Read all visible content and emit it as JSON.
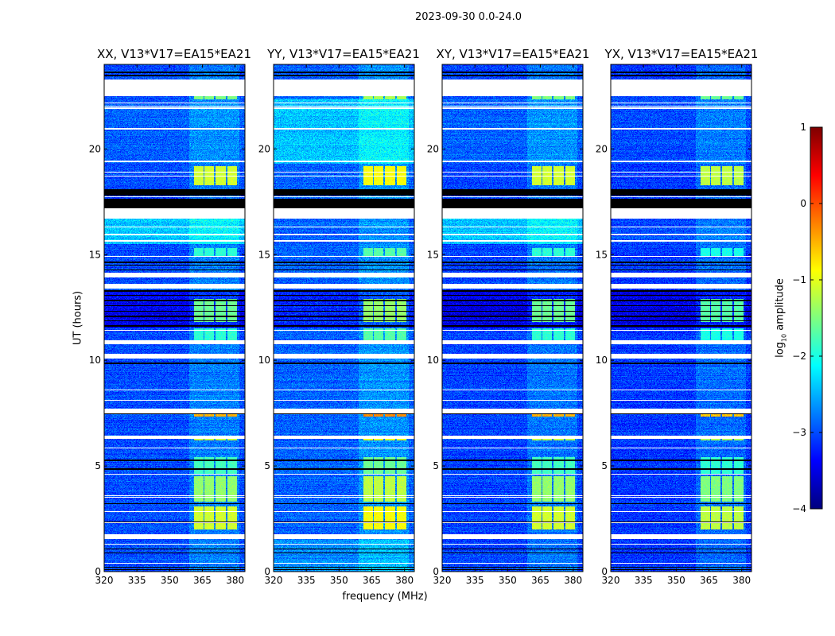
{
  "chart_data": {
    "type": "heatmap",
    "title": "2023-09-30 0.0-24.0",
    "xlabel": "frequency (MHz)",
    "ylabel": "UT (hours)",
    "xlim": [
      320,
      384.5
    ],
    "ylim": [
      0,
      24
    ],
    "xticks": [
      320,
      335,
      350,
      365,
      380
    ],
    "yticks": [
      0,
      5,
      10,
      15,
      20
    ],
    "colorbar": {
      "label_prefix": "log",
      "label_sub": "10",
      "label_suffix": " amplitude",
      "range": [
        -4,
        1
      ],
      "ticks": [
        -4,
        -3,
        -2,
        -1,
        0,
        1
      ],
      "colormap": "jet"
    },
    "panels": [
      {
        "title": "XX, V13*V17=EA15*EA21",
        "base_level": -3.0,
        "rfi_gain": 0.0,
        "regions": [
          {
            "t": [
              15.5,
              16.7
            ],
            "level": -2.4
          },
          {
            "t": [
              11.5,
              13.3
            ],
            "level": -3.4
          },
          {
            "t": [
              19.3,
              22.4
            ],
            "level": -2.9
          }
        ]
      },
      {
        "title": "YY, V13*V17=EA15*EA21",
        "base_level": -2.9,
        "rfi_gain": 0.2,
        "regions": [
          {
            "t": [
              15.5,
              16.7
            ],
            "level": -2.9
          },
          {
            "t": [
              11.5,
              13.3
            ],
            "level": -3.2
          },
          {
            "t": [
              19.3,
              22.4
            ],
            "level": -2.4
          },
          {
            "t": [
              0.0,
              1.5
            ],
            "level": -2.7
          }
        ]
      },
      {
        "title": "XY, V13*V17=EA15*EA21",
        "base_level": -3.05,
        "rfi_gain": 0.0,
        "regions": [
          {
            "t": [
              15.5,
              16.7
            ],
            "level": -2.4
          },
          {
            "t": [
              11.5,
              13.3
            ],
            "level": -3.5
          },
          {
            "t": [
              19.3,
              22.4
            ],
            "level": -2.9
          }
        ]
      },
      {
        "title": "YX, V13*V17=EA15*EA21",
        "base_level": -3.1,
        "rfi_gain": -0.1,
        "regions": [
          {
            "t": [
              15.5,
              16.7
            ],
            "level": -3.0
          },
          {
            "t": [
              11.5,
              13.3
            ],
            "level": -3.5
          },
          {
            "t": [
              19.3,
              22.4
            ],
            "level": -3.0
          }
        ]
      }
    ],
    "flagged_white": [
      [
        22.5,
        23.3
      ],
      [
        22.15,
        22.2
      ],
      [
        22.0,
        22.05
      ],
      [
        21.9,
        21.95
      ],
      [
        20.93,
        20.98
      ],
      [
        19.38,
        19.43
      ],
      [
        18.88,
        18.93
      ],
      [
        18.68,
        18.73
      ],
      [
        17.7,
        17.75
      ],
      [
        16.7,
        17.2
      ],
      [
        16.28,
        16.32
      ],
      [
        15.93,
        15.97
      ],
      [
        15.63,
        15.67
      ],
      [
        14.88,
        14.92
      ],
      [
        13.9,
        14.15
      ],
      [
        13.4,
        13.6
      ],
      [
        11.4,
        11.45
      ],
      [
        10.75,
        10.95
      ],
      [
        10.1,
        10.3
      ],
      [
        8.58,
        8.62
      ],
      [
        8.08,
        8.12
      ],
      [
        7.5,
        7.7
      ],
      [
        6.3,
        6.45
      ],
      [
        5.83,
        5.87
      ],
      [
        4.58,
        4.62
      ],
      [
        3.58,
        3.62
      ],
      [
        3.48,
        3.52
      ],
      [
        2.83,
        2.87
      ],
      [
        2.3,
        2.33
      ],
      [
        1.55,
        1.75
      ],
      [
        1.28,
        1.32
      ],
      [
        0.38,
        0.42
      ]
    ],
    "flagged_black": [
      [
        23.6,
        23.68
      ],
      [
        23.45,
        23.5
      ],
      [
        17.8,
        18.1
      ],
      [
        17.2,
        17.65
      ],
      [
        14.6,
        14.66
      ],
      [
        14.48,
        14.52
      ],
      [
        14.25,
        14.3
      ],
      [
        13.25,
        13.3
      ],
      [
        13.05,
        13.1
      ],
      [
        12.8,
        12.85
      ],
      [
        12.55,
        12.6
      ],
      [
        12.3,
        12.34
      ],
      [
        12.05,
        12.1
      ],
      [
        11.85,
        11.9
      ],
      [
        11.6,
        11.65
      ],
      [
        9.83,
        9.88
      ],
      [
        7.43,
        7.47
      ],
      [
        5.22,
        5.3
      ],
      [
        4.83,
        4.88
      ],
      [
        4.2,
        4.23
      ],
      [
        3.18,
        3.22
      ],
      [
        2.33,
        2.37
      ],
      [
        1.05,
        1.1
      ],
      [
        0.88,
        0.92
      ],
      [
        0.2,
        0.24
      ],
      [
        0.08,
        0.12
      ]
    ],
    "rfi_channels": [
      [
        361,
        365.4
      ],
      [
        366,
        370.2
      ],
      [
        371,
        375.6
      ],
      [
        376.4,
        380.8
      ]
    ],
    "rfi_events": [
      {
        "t": [
          2.0,
          3.1
        ],
        "level": -1.1
      },
      {
        "t": [
          3.3,
          4.5
        ],
        "level": -1.4
      },
      {
        "t": [
          4.6,
          5.4
        ],
        "level": -1.8
      },
      {
        "t": [
          7.35,
          7.5
        ],
        "level": -0.5
      },
      {
        "t": [
          6.2,
          6.3
        ],
        "level": -1.2
      },
      {
        "t": [
          10.9,
          11.5
        ],
        "level": -1.9
      },
      {
        "t": [
          11.8,
          12.9
        ],
        "level": -1.6
      },
      {
        "t": [
          14.9,
          15.3
        ],
        "level": -1.9
      },
      {
        "t": [
          18.3,
          19.2
        ],
        "level": -1.1
      },
      {
        "t": [
          22.35,
          22.5
        ],
        "level": -1.5
      }
    ]
  }
}
